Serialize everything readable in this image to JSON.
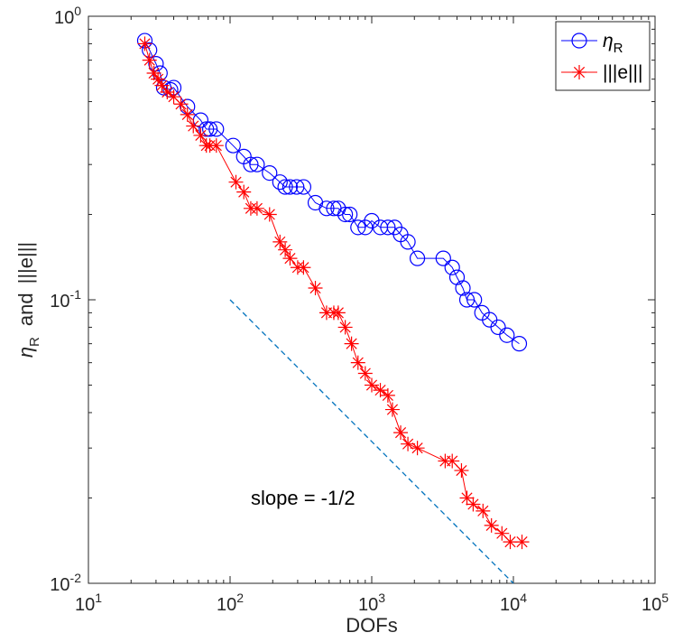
{
  "chart_data": {
    "type": "line",
    "xscale": "log",
    "yscale": "log",
    "xlim": [
      10,
      100000
    ],
    "ylim": [
      0.01,
      1
    ],
    "xlabel": "DOFs",
    "ylabel": {
      "eta": "η",
      "eta_sub": "R",
      "connector": "and",
      "norm": "|||e|||"
    },
    "x_ticks": [
      {
        "value": 10,
        "base": "10",
        "exp": "1"
      },
      {
        "value": 100,
        "base": "10",
        "exp": "2"
      },
      {
        "value": 1000,
        "base": "10",
        "exp": "3"
      },
      {
        "value": 10000,
        "base": "10",
        "exp": "4"
      },
      {
        "value": 100000,
        "base": "10",
        "exp": "5"
      }
    ],
    "y_ticks": [
      {
        "value": 0.01,
        "base": "10",
        "exp": "-2"
      },
      {
        "value": 0.1,
        "base": "10",
        "exp": "-1"
      },
      {
        "value": 1,
        "base": "10",
        "exp": "0"
      }
    ],
    "series": [
      {
        "name": "eta_R",
        "color": "#0000ff",
        "marker": "circle",
        "x": [
          25,
          27,
          30,
          32,
          34,
          38,
          40,
          50,
          62,
          68,
          72,
          80,
          105,
          125,
          140,
          155,
          190,
          225,
          245,
          265,
          295,
          330,
          400,
          480,
          540,
          580,
          650,
          700,
          800,
          900,
          1000,
          1150,
          1300,
          1450,
          1600,
          1800,
          2100,
          3200,
          3700,
          4000,
          4400,
          4700,
          5300,
          6000,
          6800,
          7800,
          9000,
          11000
        ],
        "y": [
          0.82,
          0.76,
          0.68,
          0.63,
          0.56,
          0.55,
          0.56,
          0.48,
          0.43,
          0.4,
          0.4,
          0.4,
          0.35,
          0.32,
          0.3,
          0.3,
          0.28,
          0.26,
          0.25,
          0.25,
          0.25,
          0.25,
          0.22,
          0.21,
          0.21,
          0.21,
          0.2,
          0.2,
          0.18,
          0.18,
          0.19,
          0.18,
          0.18,
          0.18,
          0.17,
          0.16,
          0.14,
          0.14,
          0.13,
          0.12,
          0.11,
          0.1,
          0.1,
          0.09,
          0.085,
          0.08,
          0.075,
          0.07
        ]
      },
      {
        "name": "|||e|||",
        "color": "#ff0000",
        "marker": "asterisk",
        "x": [
          25,
          27,
          29,
          31,
          33,
          36,
          40,
          45,
          50,
          55,
          62,
          68,
          72,
          80,
          110,
          125,
          140,
          155,
          190,
          225,
          245,
          265,
          300,
          330,
          400,
          480,
          540,
          580,
          650,
          720,
          800,
          900,
          1000,
          1150,
          1300,
          1400,
          1600,
          1800,
          2100,
          3300,
          3700,
          4300,
          4700,
          5200,
          6100,
          7000,
          8300,
          9500,
          11500
        ],
        "y": [
          0.8,
          0.7,
          0.63,
          0.6,
          0.57,
          0.54,
          0.52,
          0.49,
          0.45,
          0.41,
          0.38,
          0.35,
          0.35,
          0.35,
          0.26,
          0.24,
          0.21,
          0.21,
          0.2,
          0.16,
          0.15,
          0.14,
          0.13,
          0.13,
          0.11,
          0.09,
          0.09,
          0.09,
          0.08,
          0.07,
          0.06,
          0.055,
          0.05,
          0.048,
          0.046,
          0.041,
          0.034,
          0.031,
          0.03,
          0.027,
          0.027,
          0.025,
          0.02,
          0.019,
          0.018,
          0.016,
          0.015,
          0.014,
          0.014
        ]
      },
      {
        "name": "slope reference",
        "color": "#0072bd",
        "style": "dashed",
        "x": [
          100,
          10000
        ],
        "y": [
          0.1,
          0.01
        ]
      }
    ],
    "annotation": {
      "text": "slope = -1/2",
      "x": 200,
      "y": 0.018
    },
    "legend": {
      "position": "top-right",
      "entries": [
        {
          "label": "η",
          "sub": "R"
        },
        {
          "label": "|||e|||",
          "sub": ""
        }
      ]
    }
  }
}
